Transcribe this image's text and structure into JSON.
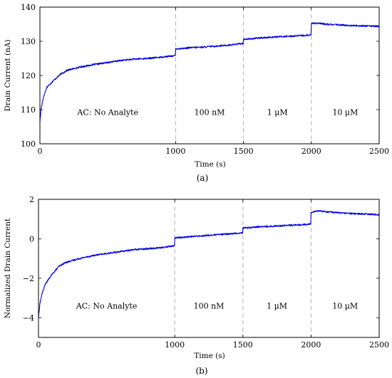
{
  "chart_data": [
    {
      "type": "line",
      "xlabel": "Time (s)",
      "ylabel": "Drain Current (nA)",
      "xlim": [
        0,
        2500
      ],
      "ylim": [
        100,
        140
      ],
      "xticks": [
        "0",
        "1000",
        "1500",
        "2000",
        "2500"
      ],
      "yticks": [
        "100",
        "110",
        "120",
        "130",
        "140"
      ],
      "dividers": [
        1000,
        1500,
        2000
      ],
      "regions": [
        {
          "label": "AC: No Analyte",
          "x": 500
        },
        {
          "label": "100 nM",
          "x": 1250
        },
        {
          "label": "1 μM",
          "x": 1750
        },
        {
          "label": "10 μM",
          "x": 2250
        }
      ],
      "caption": "(a)",
      "grid": false,
      "series": [
        {
          "color": "#0000e0",
          "x": [
            0,
            10,
            25,
            50,
            100,
            150,
            200,
            300,
            400,
            500,
            600,
            700,
            800,
            900,
            999,
            1000,
            1050,
            1100,
            1200,
            1300,
            1400,
            1499,
            1500,
            1550,
            1600,
            1700,
            1800,
            1900,
            1999,
            2000,
            2050,
            2100,
            2200,
            2300,
            2400,
            2500
          ],
          "y": [
            106.5,
            110.5,
            113.5,
            116.5,
            118.5,
            120.3,
            121.5,
            122.5,
            123.2,
            123.8,
            124.4,
            124.8,
            125.0,
            125.4,
            125.8,
            127.8,
            127.9,
            128.1,
            128.3,
            128.6,
            128.9,
            129.4,
            130.6,
            130.7,
            130.9,
            131.2,
            131.4,
            131.6,
            131.8,
            135.3,
            135.3,
            135.0,
            134.8,
            134.6,
            134.5,
            134.4
          ]
        }
      ]
    },
    {
      "type": "line",
      "xlabel": "Time (s)",
      "ylabel": "Normalized Drain Current",
      "xlim": [
        0,
        2500
      ],
      "ylim": [
        -5,
        2
      ],
      "xticks": [
        "0",
        "1000",
        "1500",
        "2000",
        "2500"
      ],
      "yticks": [
        "−4",
        "−2",
        "0",
        "2"
      ],
      "yticks_at": [
        -4,
        -2,
        0,
        2
      ],
      "dividers": [
        1000,
        1500,
        2000
      ],
      "regions": [
        {
          "label": "AC: No Analyte",
          "x": 500
        },
        {
          "label": "100 nM",
          "x": 1250
        },
        {
          "label": "1 μM",
          "x": 1750
        },
        {
          "label": "10 μM",
          "x": 2250
        }
      ],
      "caption": "(b)",
      "grid": false,
      "series": [
        {
          "color": "#0000e0",
          "x": [
            0,
            10,
            25,
            50,
            100,
            150,
            200,
            300,
            400,
            500,
            600,
            700,
            800,
            900,
            999,
            1000,
            1050,
            1100,
            1200,
            1300,
            1400,
            1499,
            1500,
            1550,
            1600,
            1700,
            1800,
            1900,
            1999,
            2000,
            2050,
            2100,
            2200,
            2300,
            2400,
            2500
          ],
          "y": [
            -4.0,
            -3.3,
            -2.8,
            -2.3,
            -1.8,
            -1.4,
            -1.2,
            -1.0,
            -0.85,
            -0.75,
            -0.65,
            -0.55,
            -0.5,
            -0.45,
            -0.35,
            0.05,
            0.07,
            0.1,
            0.15,
            0.2,
            0.25,
            0.3,
            0.55,
            0.57,
            0.6,
            0.63,
            0.67,
            0.7,
            0.75,
            1.35,
            1.42,
            1.38,
            1.32,
            1.28,
            1.25,
            1.22
          ]
        }
      ]
    }
  ]
}
